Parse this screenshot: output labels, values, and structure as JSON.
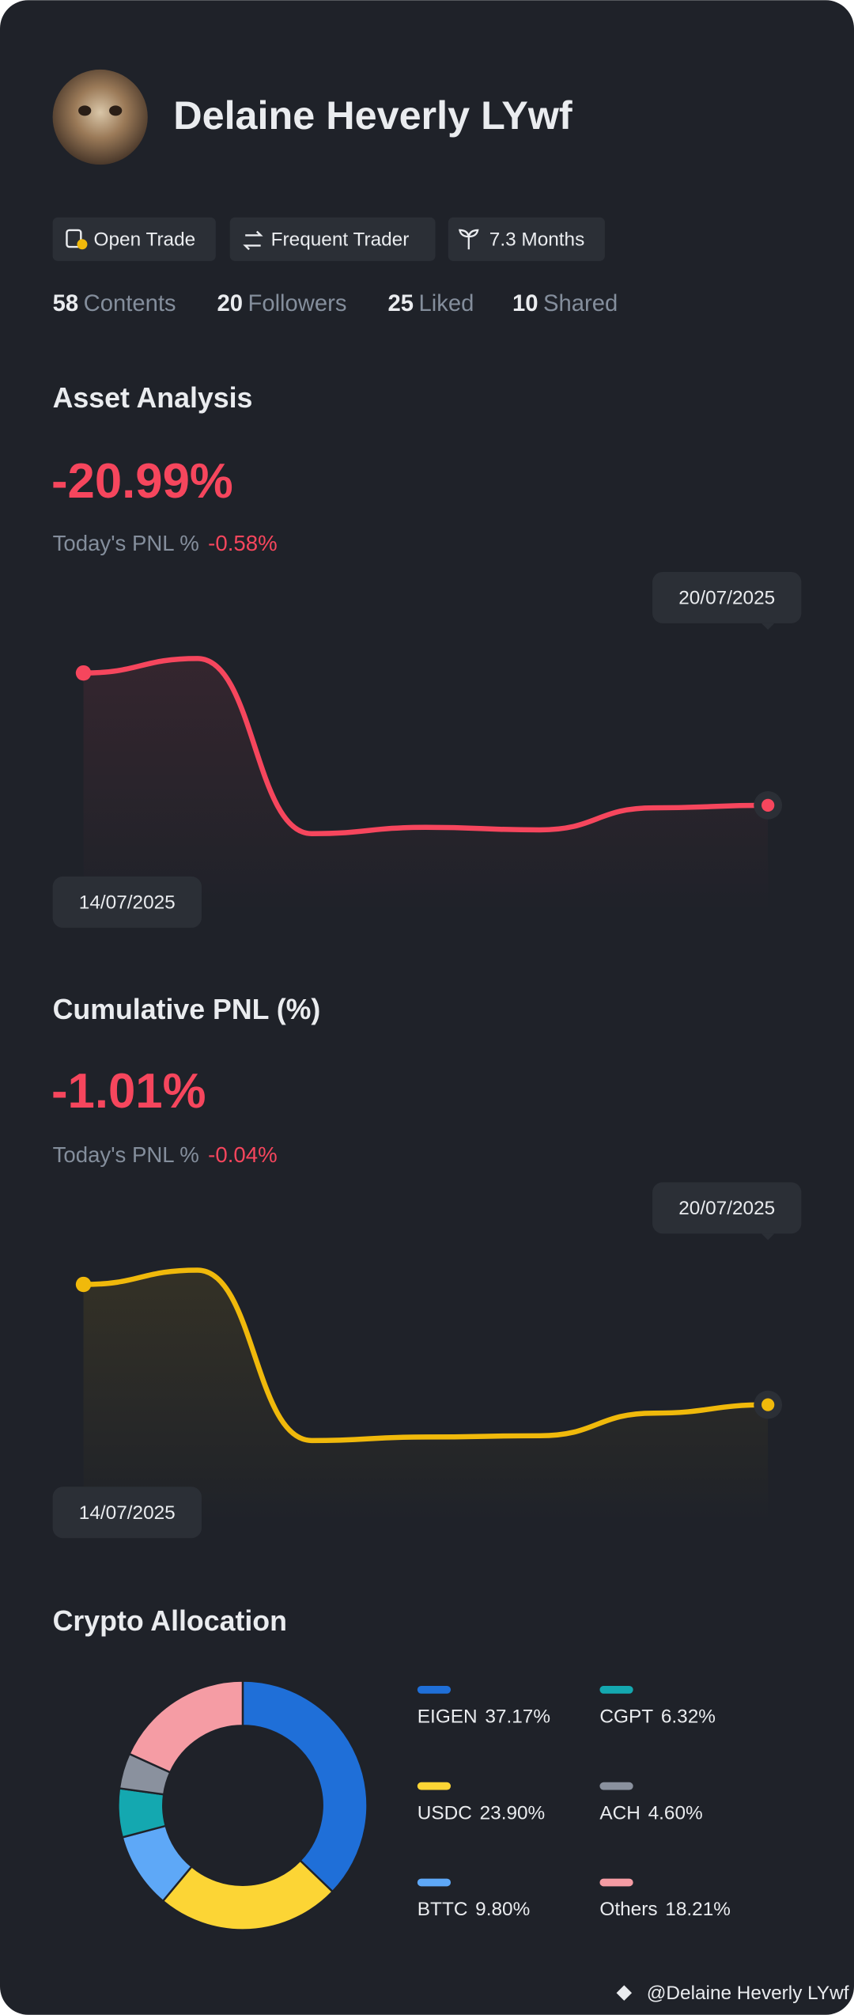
{
  "profile": {
    "name": "Delaine Heverly LYwf",
    "tags": [
      "Open Trade",
      "Frequent Trader",
      "7.3 Months"
    ],
    "stats": [
      {
        "value": 58,
        "label": "Contents"
      },
      {
        "value": 20,
        "label": "Followers"
      },
      {
        "value": 25,
        "label": "Liked"
      },
      {
        "value": 10,
        "label": "Shared"
      }
    ]
  },
  "asset_analysis": {
    "title": "Asset Analysis",
    "value": "-20.99%",
    "today_label": "Today's PNL %",
    "today_value": "-0.58%",
    "chart_data": {
      "type": "line",
      "categories": [
        "14/07/2025",
        null,
        null,
        null,
        null,
        null,
        "20/07/2025"
      ],
      "values": [
        0,
        2.3,
        -25.5,
        -24.5,
        -24.9,
        -21.4,
        -20.99
      ],
      "color": "#f6465d",
      "ylim": [
        -38,
        14
      ]
    }
  },
  "cumulative_pnl": {
    "title": "Cumulative PNL (%)",
    "value": "-1.01%",
    "today_label": "Today's PNL %",
    "today_value": "-0.04%",
    "chart_data": {
      "type": "line",
      "categories": [
        "14/07/2025",
        null,
        null,
        null,
        null,
        null,
        "20/07/2025"
      ],
      "values": [
        0,
        0.12,
        -1.31,
        -1.28,
        -1.27,
        -1.08,
        -1.01
      ],
      "color": "#f0b90b",
      "ylim": [
        -2,
        0.75
      ]
    }
  },
  "crypto_allocation": {
    "title": "Crypto Allocation",
    "chart_data": {
      "type": "pie",
      "categories": [
        "EIGEN",
        "USDC",
        "BTTC",
        "CGPT",
        "ACH",
        "Others"
      ],
      "values": [
        37.17,
        23.9,
        9.8,
        6.32,
        4.6,
        18.21
      ],
      "value_labels": [
        "37.17%",
        "23.90%",
        "9.80%",
        "6.32%",
        "4.60%",
        "18.21%"
      ],
      "colors": [
        "#1f6fd8",
        "#fcd535",
        "#5ea8f7",
        "#14a8b0",
        "#8a919e",
        "#f59ca4"
      ]
    }
  },
  "watermark": "@Delaine Heverly LYwf"
}
